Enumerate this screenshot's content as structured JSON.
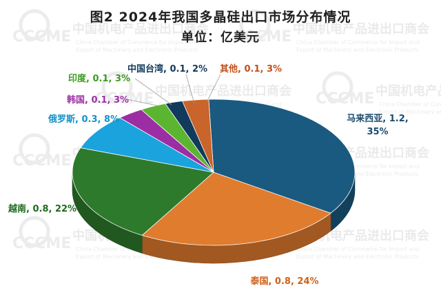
{
  "chart_data": {
    "type": "pie",
    "title": "图2  2024年我国多晶硅出口市场分布情况",
    "subtitle": "单位：亿美元",
    "slices": [
      {
        "label": "马来西亚",
        "value": 1.2,
        "percent": 35,
        "color": "#1a5a80",
        "text": "马来西亚, 1.2,",
        "text2": "35%"
      },
      {
        "label": "泰国",
        "value": 0.8,
        "percent": 24,
        "color": "#e07c2e",
        "text": "泰国, 0.8, 24%"
      },
      {
        "label": "越南",
        "value": 0.8,
        "percent": 22,
        "color": "#2d7a2d",
        "text": "越南, 0.8, 22%"
      },
      {
        "label": "俄罗斯",
        "value": 0.3,
        "percent": 8,
        "color": "#1aa3dc",
        "text": "俄罗斯, 0.3, 8%"
      },
      {
        "label": "韩国",
        "value": 0.1,
        "percent": 3,
        "color": "#9c2ea3",
        "text": "韩国, 0.1, 3%"
      },
      {
        "label": "印度",
        "value": 0.1,
        "percent": 3,
        "color": "#5bb530",
        "text": "印度, 0.1, 3%"
      },
      {
        "label": "中国台湾",
        "value": 0.1,
        "percent": 2,
        "color": "#123a5c",
        "text": "中国台湾, 0.1, 2%"
      },
      {
        "label": "其他",
        "value": 0.1,
        "percent": 3,
        "color": "#c9642a",
        "text": "其他, 0.1, 3%"
      }
    ]
  },
  "watermark": {
    "logo": "CCCME",
    "cn": "中国机电产品进出口商会",
    "en1": "China Chamber of Commerce for Import and",
    "en2": "Export of Machinery and Electronic Products"
  }
}
